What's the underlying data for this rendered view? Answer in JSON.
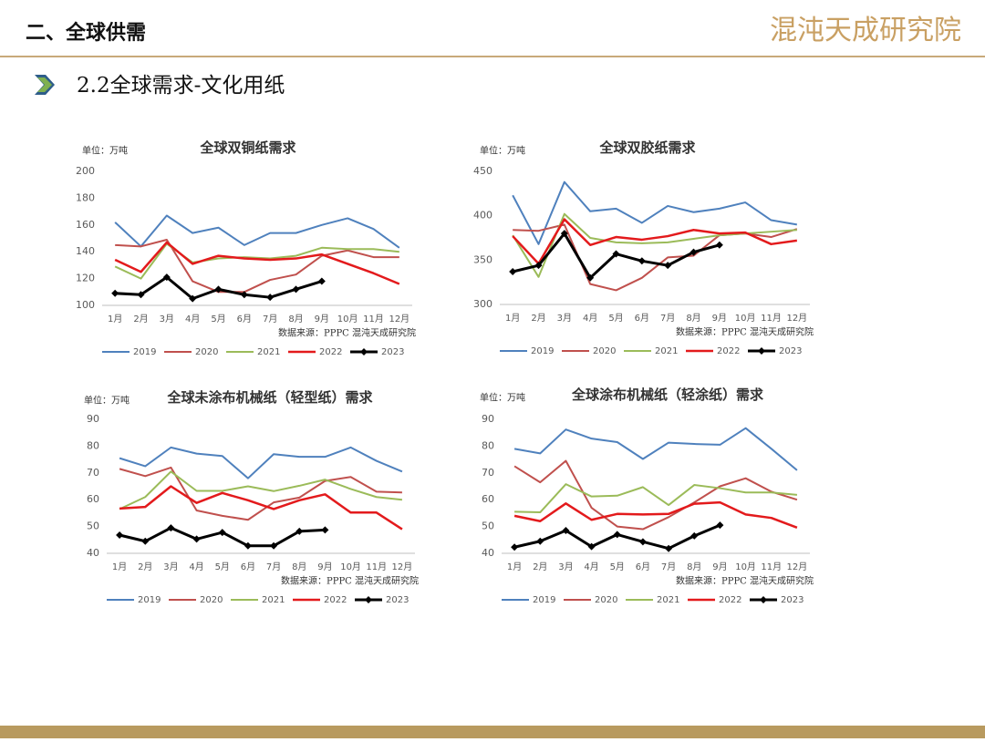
{
  "header": {
    "section": "二、全球供需",
    "logo": "混沌天成研究院",
    "subtitle": "2.2全球需求-文化用纸"
  },
  "chart_data": [
    {
      "type": "line",
      "title": "全球双铜纸需求",
      "unit": "单位：万吨",
      "source": "数据来源：PPPC 混沌天成研究院",
      "categories": [
        "1月",
        "2月",
        "3月",
        "4月",
        "5月",
        "6月",
        "7月",
        "8月",
        "9月",
        "10月",
        "11月",
        "12月"
      ],
      "ylim": [
        100,
        200
      ],
      "yticks": [
        100,
        120,
        140,
        160,
        180,
        200
      ],
      "grid": false,
      "series": [
        {
          "name": "2019",
          "color": "#4f81bd",
          "values": [
            162,
            144,
            167,
            154,
            158,
            145,
            154,
            154,
            160,
            165,
            157,
            143
          ]
        },
        {
          "name": "2020",
          "color": "#c0504d",
          "values": [
            145,
            144,
            149,
            118,
            110,
            110,
            119,
            123,
            137,
            141,
            136,
            136
          ]
        },
        {
          "name": "2021",
          "color": "#9bbb59",
          "values": [
            129,
            120,
            146,
            132,
            135,
            136,
            135,
            137,
            143,
            142,
            142,
            140
          ]
        },
        {
          "name": "2022",
          "color": "#e31a1c",
          "values": [
            134,
            125,
            147,
            131,
            137,
            135,
            134,
            135,
            138,
            131,
            124,
            116
          ]
        },
        {
          "name": "2023",
          "color": "#000000",
          "values": [
            109,
            108,
            121,
            105,
            112,
            108,
            106,
            112,
            118,
            null,
            null,
            null
          ]
        }
      ]
    },
    {
      "type": "line",
      "title": "全球双胶纸需求",
      "unit": "单位：万吨",
      "source": "数据来源：PPPC 混沌天成研究院",
      "categories": [
        "1月",
        "2月",
        "3月",
        "4月",
        "5月",
        "6月",
        "7月",
        "8月",
        "9月",
        "10月",
        "11月",
        "12月"
      ],
      "ylim": [
        300,
        450
      ],
      "yticks": [
        300,
        350,
        400,
        450
      ],
      "grid": false,
      "series": [
        {
          "name": "2019",
          "color": "#4f81bd",
          "values": [
            423,
            368,
            438,
            405,
            408,
            392,
            411,
            404,
            408,
            415,
            395,
            390
          ]
        },
        {
          "name": "2020",
          "color": "#c0504d",
          "values": [
            384,
            383,
            390,
            323,
            316,
            330,
            353,
            355,
            378,
            380,
            376,
            385
          ]
        },
        {
          "name": "2021",
          "color": "#9bbb59",
          "values": [
            378,
            331,
            402,
            375,
            370,
            369,
            370,
            374,
            378,
            380,
            382,
            384
          ]
        },
        {
          "name": "2022",
          "color": "#e31a1c",
          "values": [
            377,
            346,
            396,
            367,
            376,
            373,
            377,
            384,
            380,
            381,
            368,
            372
          ]
        },
        {
          "name": "2023",
          "color": "#000000",
          "values": [
            337,
            344,
            380,
            330,
            357,
            349,
            344,
            359,
            367,
            null,
            null,
            null
          ]
        }
      ]
    },
    {
      "type": "line",
      "title": "全球未涂布机械纸（轻型纸）需求",
      "unit": "单位：万吨",
      "source": "数据来源：PPPC 混沌天成研究院",
      "categories": [
        "1月",
        "2月",
        "3月",
        "4月",
        "5月",
        "6月",
        "7月",
        "8月",
        "9月",
        "10月",
        "11月",
        "12月"
      ],
      "ylim": [
        40,
        90
      ],
      "yticks": [
        40,
        50,
        60,
        70,
        80,
        90
      ],
      "grid": false,
      "series": [
        {
          "name": "2019",
          "color": "#4f81bd",
          "values": [
            75.5,
            72.5,
            79.5,
            77.2,
            76.3,
            68,
            77,
            76,
            76,
            79.5,
            74.5,
            70.5
          ]
        },
        {
          "name": "2020",
          "color": "#c0504d",
          "values": [
            71.5,
            68.8,
            72,
            56,
            54,
            52.5,
            59,
            60.8,
            67,
            68.5,
            63,
            62.7
          ]
        },
        {
          "name": "2021",
          "color": "#9bbb59",
          "values": [
            56.5,
            61,
            70.5,
            63.3,
            63.3,
            65,
            63.2,
            65.2,
            67.5,
            64,
            61,
            60
          ]
        },
        {
          "name": "2022",
          "color": "#e31a1c",
          "values": [
            56.7,
            57.3,
            65,
            58.8,
            62.5,
            59.8,
            56.5,
            59.8,
            62,
            55.2,
            55.2,
            49
          ]
        },
        {
          "name": "2023",
          "color": "#000000",
          "values": [
            46.8,
            44.5,
            49.5,
            45.3,
            47.8,
            42.8,
            42.8,
            48.2,
            48.7,
            null,
            null,
            null
          ]
        }
      ]
    },
    {
      "type": "line",
      "title": "全球涂布机械纸（轻涂纸）需求",
      "unit": "单位：万吨",
      "source": "数据来源：PPPC 混沌天成研究院",
      "categories": [
        "1月",
        "2月",
        "3月",
        "4月",
        "5月",
        "6月",
        "7月",
        "8月",
        "9月",
        "10月",
        "11月",
        "12月"
      ],
      "ylim": [
        40,
        90
      ],
      "yticks": [
        40,
        50,
        60,
        70,
        80,
        90
      ],
      "grid": false,
      "series": [
        {
          "name": "2019",
          "color": "#4f81bd",
          "values": [
            79,
            77.3,
            86.2,
            82.8,
            81.5,
            75.2,
            81.3,
            80.8,
            80.5,
            86.7,
            79,
            71
          ]
        },
        {
          "name": "2020",
          "color": "#c0504d",
          "values": [
            72.5,
            66.5,
            74.5,
            57,
            50,
            49,
            53.5,
            59,
            65,
            68,
            63,
            60
          ]
        },
        {
          "name": "2021",
          "color": "#9bbb59",
          "values": [
            55.5,
            55.3,
            65.8,
            61.2,
            61.5,
            64.7,
            58,
            65.5,
            64.3,
            62.7,
            62.7,
            61.8
          ]
        },
        {
          "name": "2022",
          "color": "#e31a1c",
          "values": [
            54,
            52,
            58.6,
            52.5,
            54.7,
            54.5,
            54.7,
            58.5,
            59,
            54.5,
            53.2,
            49.6
          ]
        },
        {
          "name": "2023",
          "color": "#000000",
          "values": [
            42.3,
            44.5,
            48.5,
            42.5,
            47,
            44.3,
            41.8,
            46.5,
            50.5,
            null,
            null,
            null
          ]
        }
      ]
    }
  ]
}
